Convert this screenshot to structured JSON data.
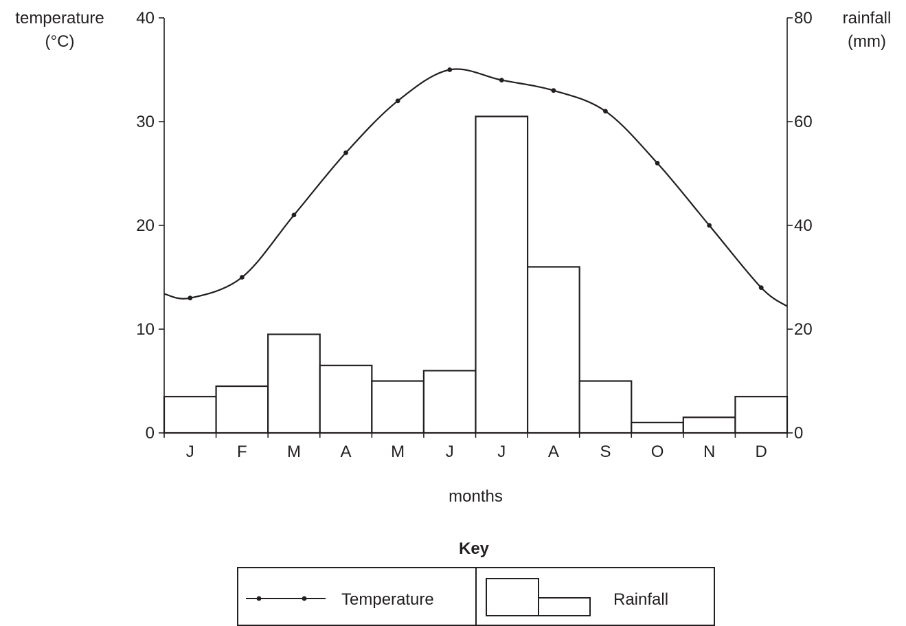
{
  "chart_data": {
    "type": "bar+line",
    "title": "",
    "categories": [
      "J",
      "F",
      "M",
      "A",
      "M",
      "J",
      "J",
      "A",
      "S",
      "O",
      "N",
      "D"
    ],
    "xlabel": "months",
    "y_left": {
      "label_lines": [
        "temperature",
        "(°C)"
      ],
      "ticks": [
        0,
        10,
        20,
        30,
        40
      ],
      "range": [
        0,
        40
      ]
    },
    "y_right": {
      "label_lines": [
        "rainfall",
        "(mm)"
      ],
      "ticks": [
        0,
        20,
        40,
        60,
        80
      ],
      "range": [
        0,
        80
      ]
    },
    "series": [
      {
        "name": "Temperature",
        "type": "line",
        "axis": "left",
        "values": [
          13,
          15,
          21,
          27,
          32,
          35,
          34,
          33,
          31,
          26,
          20,
          14
        ]
      },
      {
        "name": "Rainfall",
        "type": "bar",
        "axis": "right",
        "values": [
          7,
          9,
          19,
          13,
          10,
          12,
          61,
          32,
          10,
          2,
          3,
          7
        ]
      }
    ],
    "temperature_line_ends": {
      "left": 13.4,
      "right": 12.2
    },
    "grid": false,
    "legend": {
      "title": "Key",
      "position": "bottom",
      "entries": [
        "Temperature",
        "Rainfall"
      ]
    },
    "colors": {
      "ink": "#231f20",
      "fill": "#ffffff"
    }
  }
}
